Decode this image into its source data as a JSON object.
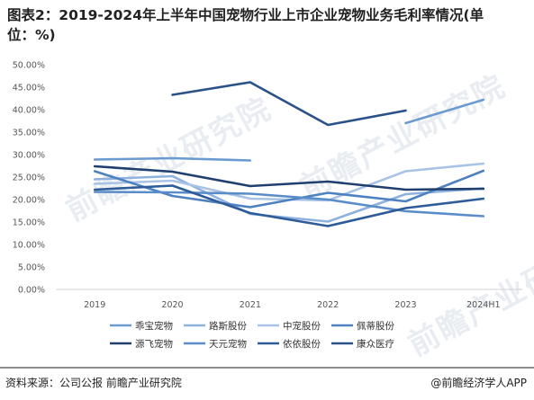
{
  "title": "图表2：2019-2024年上半年中国宠物行业上市企业宠物业务毛利率情况(单位：%)",
  "source": "资料来源：公司公报 前瞻产业研究院",
  "brand": "@前瞻经济学人APP",
  "watermark": "前瞻产业研究院",
  "chart_data": {
    "type": "line",
    "categories": [
      "2019",
      "2020",
      "2021",
      "2022",
      "2023",
      "2024H1"
    ],
    "ylim": [
      0,
      50
    ],
    "yticks": [
      "0.00%",
      "5.00%",
      "10.00%",
      "15.00%",
      "20.00%",
      "25.00%",
      "30.00%",
      "35.00%",
      "40.00%",
      "45.00%",
      "50.00%"
    ],
    "legend_position": "bottom",
    "grid": false,
    "series": [
      {
        "name": "乖宝宠物",
        "color": "#6b9ad0",
        "values": [
          28.9,
          29.2,
          28.7,
          null,
          37.0,
          42.2
        ]
      },
      {
        "name": "路斯股份",
        "color": "#8fb1de",
        "values": [
          24.5,
          25.2,
          16.8,
          15.1,
          21.2,
          22.5
        ]
      },
      {
        "name": "中宠股份",
        "color": "#a9c3e6",
        "values": [
          23.5,
          24.2,
          20.2,
          19.8,
          26.3,
          28.0
        ]
      },
      {
        "name": "佩蒂股份",
        "color": "#4e81c0",
        "values": [
          26.3,
          20.8,
          18.3,
          21.5,
          19.6,
          26.4
        ]
      },
      {
        "name": "源飞宠物",
        "color": "#1f3f6e",
        "values": [
          27.4,
          26.2,
          23.0,
          24.0,
          22.2,
          22.4
        ]
      },
      {
        "name": "天元宠物",
        "color": "#5a8cc9",
        "values": [
          21.7,
          21.6,
          21.3,
          20.0,
          17.4,
          16.3
        ]
      },
      {
        "name": "依依股份",
        "color": "#2d5c98",
        "values": [
          22.2,
          23.1,
          17.0,
          14.1,
          18.1,
          20.2
        ]
      },
      {
        "name": "康众医疗",
        "color": "#2a5289",
        "values": [
          null,
          43.3,
          46.1,
          36.6,
          39.8,
          null
        ]
      }
    ]
  }
}
